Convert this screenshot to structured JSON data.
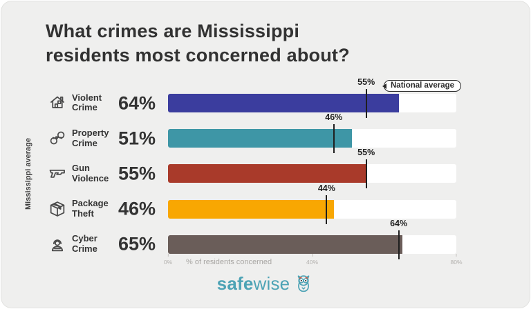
{
  "title": {
    "line1": "What crimes are Mississippi",
    "line2": "residents most concerned about?"
  },
  "y_axis_label": "Mississippi average",
  "national_average": {
    "label": "National average"
  },
  "x_axis": {
    "label": "% of residents concerned",
    "max": 80,
    "ticks": [
      {
        "value": 0,
        "label": "0%"
      },
      {
        "value": 40,
        "label": "40%"
      },
      {
        "value": 80,
        "label": "80%"
      }
    ]
  },
  "logo": {
    "text_bold": "safe",
    "text_regular": "wise",
    "color": "#4da3b5",
    "owl_icon": "owl-icon"
  },
  "chart_data": {
    "type": "bar",
    "orientation": "horizontal",
    "title": "What crimes are Mississippi residents most concerned about?",
    "xlabel": "% of residents concerned",
    "xlim": [
      0,
      80
    ],
    "x_ticks": [
      "0%",
      "40%",
      "80%"
    ],
    "grid": false,
    "legend_position": "top-right-pill",
    "categories": [
      "Violent Crime",
      "Property Crime",
      "Gun Violence",
      "Package Theft",
      "Cyber Crime"
    ],
    "series": [
      {
        "name": "Mississippi average",
        "values": [
          64,
          51,
          55,
          46,
          65
        ]
      },
      {
        "name": "National average",
        "values": [
          55,
          46,
          55,
          44,
          64
        ]
      }
    ],
    "bar_colors": [
      "#3b3d9e",
      "#3e96a6",
      "#a93a2a",
      "#f8a702",
      "#6a5d59"
    ],
    "rows": [
      {
        "icon": "house-icon",
        "label_line1": "Violent",
        "label_line2": "Crime",
        "value": 64,
        "value_label": "64%",
        "national": 55,
        "national_label": "55%",
        "color": "#3b3d9e"
      },
      {
        "icon": "handcuffs-icon",
        "label_line1": "Property",
        "label_line2": "Crime",
        "value": 51,
        "value_label": "51%",
        "national": 46,
        "national_label": "46%",
        "color": "#3e96a6"
      },
      {
        "icon": "pistol-icon",
        "label_line1": "Gun",
        "label_line2": "Violence",
        "value": 55,
        "value_label": "55%",
        "national": 55,
        "national_label": "55%",
        "color": "#a93a2a"
      },
      {
        "icon": "package-icon",
        "label_line1": "Package",
        "label_line2": "Theft",
        "value": 46,
        "value_label": "46%",
        "national": 44,
        "national_label": "44%",
        "color": "#f8a702"
      },
      {
        "icon": "hacker-icon",
        "label_line1": "Cyber",
        "label_line2": "Crime",
        "value": 65,
        "value_label": "65%",
        "national": 64,
        "national_label": "64%",
        "color": "#6a5d59"
      }
    ]
  }
}
